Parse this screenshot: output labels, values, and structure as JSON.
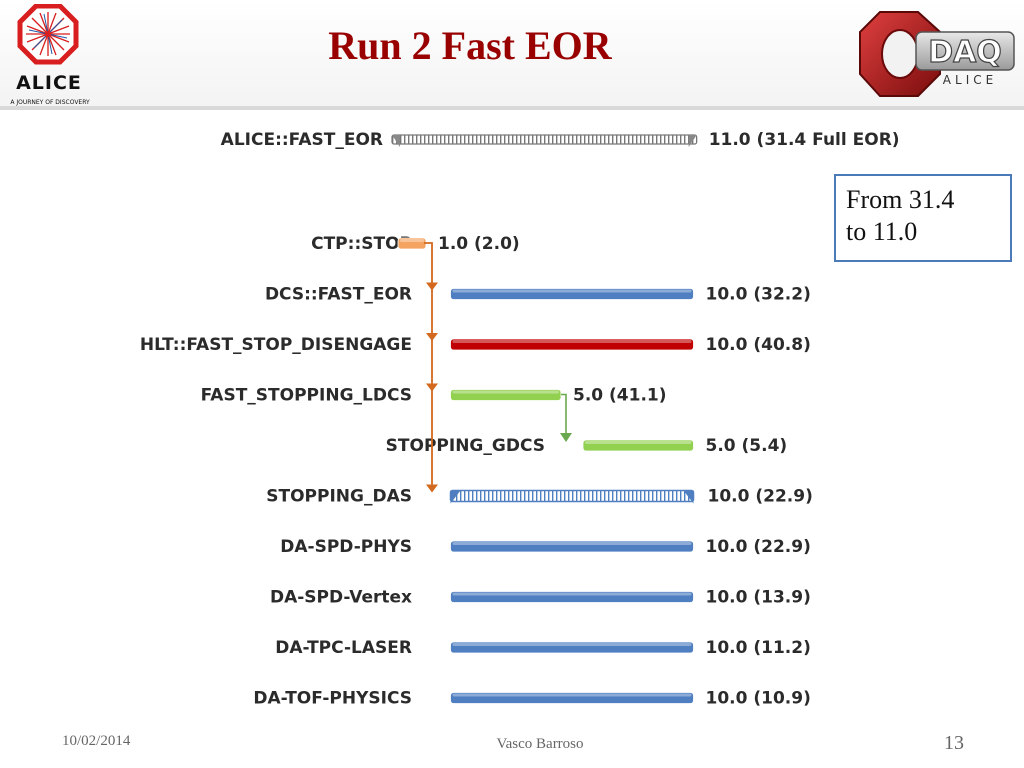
{
  "slide": {
    "title": "Run 2 Fast EOR",
    "logo_left_text": "ALICE",
    "logo_left_tagline": "A JOURNEY OF DISCOVERY",
    "logo_right_text": "DAQ",
    "logo_right_subtext": "ALICE"
  },
  "callout": {
    "line1": "From 31.4",
    "line2": "to 11.0"
  },
  "footer": {
    "date": "10/02/2014",
    "author": "Vasco Barroso",
    "page": "13"
  },
  "colors": {
    "title": "#990000",
    "blue": "#4f7fc0",
    "red": "#c00000",
    "green": "#92d050",
    "orange": "#f4a460",
    "connector": "#d2691e",
    "callout_border": "#4a7ab8"
  },
  "chart_data": {
    "type": "bar",
    "subtype": "gantt",
    "overall": {
      "category": "ALICE::FAST_EOR",
      "start": 0,
      "duration": 11.0,
      "label": "11.0 (31.4 Full EOR)",
      "style": "summary"
    },
    "tasks": [
      {
        "category": "CTP::STOP",
        "start": 0,
        "duration": 1.0,
        "label": "1.0 (2.0)",
        "color": "orange"
      },
      {
        "category": "DCS::FAST_EOR",
        "start": 1.0,
        "duration": 10.0,
        "label": "10.0 (32.2)",
        "color": "blue"
      },
      {
        "category": "HLT::FAST_STOP_DISENGAGE",
        "start": 1.0,
        "duration": 10.0,
        "label": "10.0 (40.8)",
        "color": "red"
      },
      {
        "category": "FAST_STOPPING_LDCS",
        "start": 1.0,
        "duration": 5.0,
        "label": "5.0 (41.1)",
        "color": "green"
      },
      {
        "category": "STOPPING_GDCS",
        "start": 6.0,
        "duration": 5.0,
        "label": "5.0 (5.4)",
        "color": "green"
      },
      {
        "category": "STOPPING_DAS",
        "start": 1.0,
        "duration": 10.0,
        "label": "10.0 (22.9)",
        "color": "blue",
        "style": "summary"
      },
      {
        "category": "DA-SPD-PHYS",
        "start": 1.0,
        "duration": 10.0,
        "label": "10.0 (22.9)",
        "color": "blue"
      },
      {
        "category": "DA-SPD-Vertex",
        "start": 1.0,
        "duration": 10.0,
        "label": "10.0 (13.9)",
        "color": "blue"
      },
      {
        "category": "DA-TPC-LASER",
        "start": 1.0,
        "duration": 10.0,
        "label": "10.0 (11.2)",
        "color": "blue"
      },
      {
        "category": "DA-TOF-PHYSICS",
        "start": 1.0,
        "duration": 10.0,
        "label": "10.0 (10.9)",
        "color": "blue"
      }
    ],
    "dependencies": [
      {
        "from": "CTP::STOP",
        "to": [
          "DCS::FAST_EOR",
          "HLT::FAST_STOP_DISENGAGE",
          "FAST_STOPPING_LDCS",
          "STOPPING_DAS"
        ]
      },
      {
        "from": "FAST_STOPPING_LDCS",
        "to": [
          "STOPPING_GDCS"
        ]
      }
    ]
  }
}
